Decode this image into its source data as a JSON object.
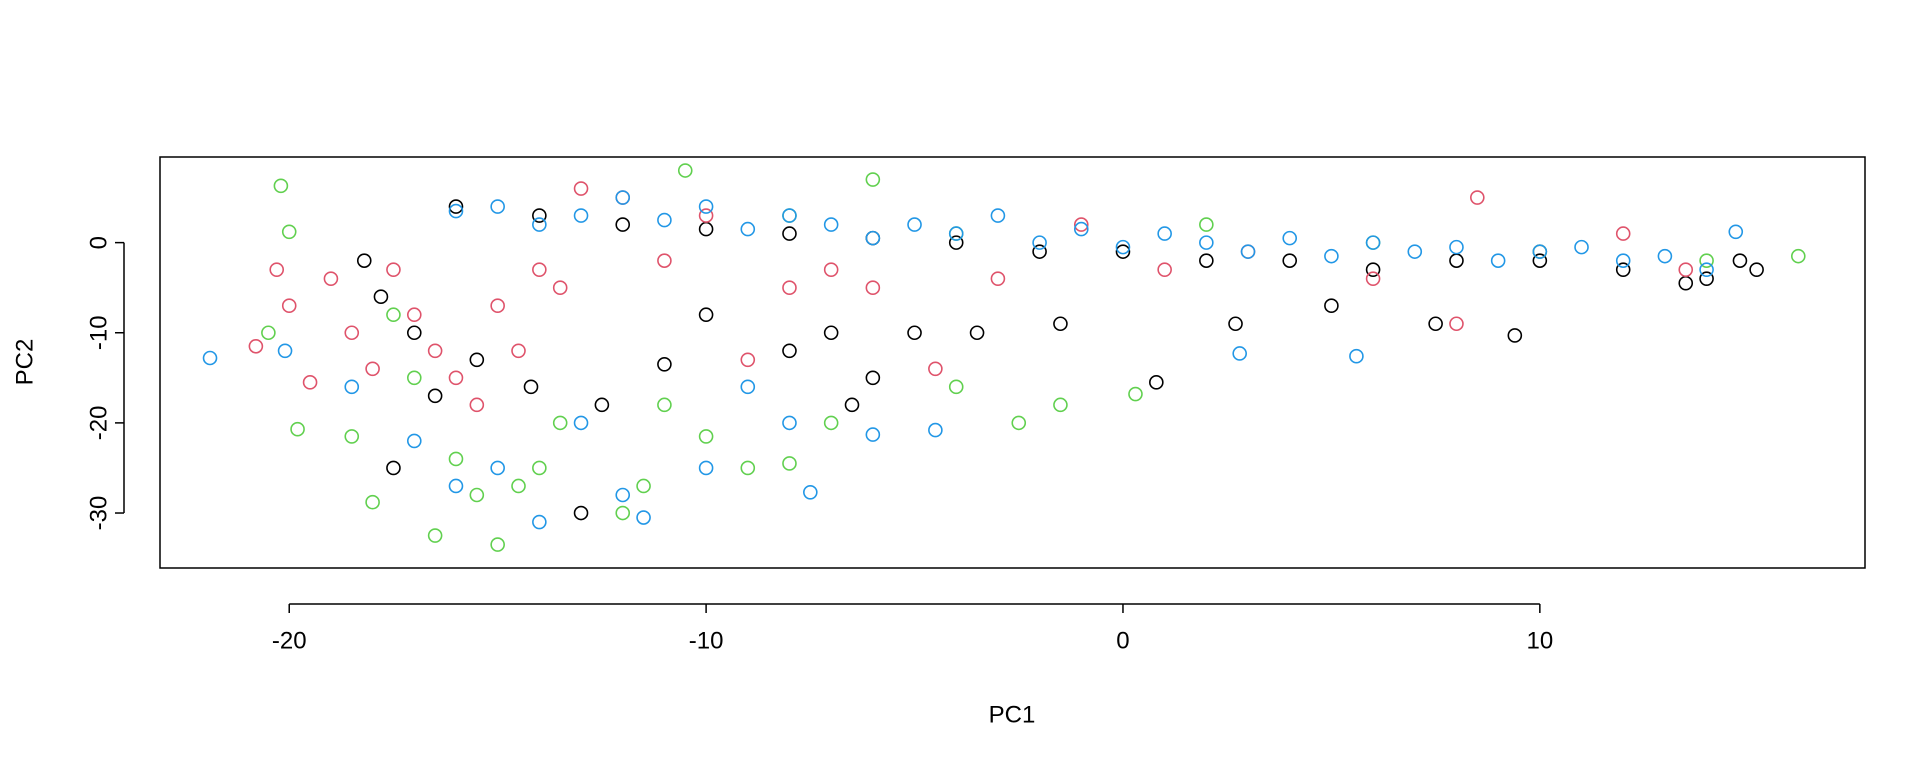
{
  "chart_data": {
    "type": "scatter",
    "x_label": "PC1",
    "y_label": "PC2",
    "xlim": [
      -23.1,
      17.8
    ],
    "ylim": [
      -36.1,
      9.5
    ],
    "xticks": [
      -20,
      -10,
      0,
      10
    ],
    "yticks": [
      -30,
      -20,
      -10,
      0
    ],
    "grid": false,
    "series": [
      {
        "color": "#000000",
        "x": [
          -16,
          -14,
          -12,
          -10,
          -8,
          -6,
          -4,
          -2,
          0,
          2,
          4,
          6,
          8,
          10,
          12,
          14,
          15.2,
          14.8,
          -18.2,
          -17.8,
          -17,
          -16.5,
          -17.5,
          -15.5,
          -14.2,
          -13,
          -12.5,
          -11,
          -10,
          -8,
          -7,
          -6.5,
          -5,
          -3.5,
          -1.5,
          0.8,
          2.7,
          5,
          7.5,
          9.4,
          13.5,
          -6
        ],
        "values": [
          4,
          3,
          2,
          1.5,
          1,
          0.5,
          0,
          -1,
          -1,
          -2,
          -2,
          -3,
          -2,
          -2,
          -3,
          -4,
          -3,
          -2,
          -2,
          -6,
          -10,
          -17,
          -25,
          -13,
          -16,
          -30,
          -18,
          -13.5,
          -8,
          -12,
          -10,
          -18,
          -10,
          -10,
          -9,
          -15.5,
          -9,
          -7,
          -9,
          -10.3,
          -4.5,
          -15
        ]
      },
      {
        "color": "#DF536B",
        "x": [
          -20.8,
          -20.3,
          -20,
          -19.5,
          -19,
          -18.5,
          -18,
          -17.5,
          -17,
          -16.5,
          -16,
          -15.5,
          -15,
          -14.5,
          -14,
          -13.5,
          -13,
          -12,
          -11,
          -10,
          -9,
          -8,
          -6,
          -4.5,
          -3,
          -1,
          1,
          3,
          6,
          8,
          8.5,
          10,
          12,
          13.5,
          -7
        ],
        "values": [
          -11.5,
          -3,
          -7,
          -15.5,
          -4,
          -10,
          -14,
          -3,
          -8,
          -12,
          -15,
          -18,
          -7,
          -12,
          -3,
          -5,
          6,
          5,
          -2,
          3,
          -13,
          -5,
          -5,
          -14,
          -4,
          2,
          -3,
          -1,
          -4,
          -9,
          5,
          -1,
          1,
          -3,
          -3
        ]
      },
      {
        "color": "#61D04F",
        "x": [
          -20.2,
          -20,
          -20.5,
          -19.8,
          -18.5,
          -18,
          -17.5,
          -17,
          -16.5,
          -16,
          -15.5,
          -15,
          -14.5,
          -14,
          -13.5,
          -12,
          -11.5,
          -11,
          -10,
          -9,
          -8,
          -7,
          -6,
          -4,
          -2.5,
          -1.5,
          0.3,
          -10.5,
          -8,
          -4,
          2,
          6,
          10,
          14,
          16.2
        ],
        "values": [
          6.3,
          1.2,
          -10,
          -20.7,
          -21.5,
          -28.8,
          -8,
          -15,
          -32.5,
          -24,
          -28,
          -33.5,
          -27,
          -25,
          -20,
          -30,
          -27,
          -18,
          -21.5,
          -25,
          -24.5,
          -20,
          7,
          -16,
          -20,
          -18,
          -16.8,
          8,
          3,
          1,
          2,
          0,
          -1,
          -2,
          -1.5
        ]
      },
      {
        "color": "#2297E6",
        "x": [
          -16,
          -15,
          -14,
          -13,
          -12,
          -11,
          -10,
          -9,
          -8,
          -7,
          -6,
          -5,
          -4,
          -3,
          -2,
          -1,
          0,
          1,
          2,
          3,
          4,
          5,
          6,
          7,
          8,
          9,
          10,
          11,
          12,
          13,
          14,
          14.7,
          -21.9,
          -20.1,
          -18.5,
          -17,
          -16,
          -15,
          -14,
          -13,
          -12,
          -11.5,
          -10,
          -9,
          -8,
          -7.5,
          -6,
          -4.5,
          2.8,
          5.6
        ],
        "values": [
          3.5,
          4,
          2,
          3,
          5,
          2.5,
          4,
          1.5,
          3,
          2,
          0.5,
          2,
          1,
          3,
          0,
          1.5,
          -0.5,
          1,
          0,
          -1,
          0.5,
          -1.5,
          0,
          -1,
          -0.5,
          -2,
          -1,
          -0.5,
          -2,
          -1.5,
          -3,
          1.2,
          -12.8,
          -12,
          -16,
          -22,
          -27,
          -25,
          -31,
          -20,
          -28,
          -30.5,
          -25,
          -16,
          -20,
          -27.7,
          -21.3,
          -20.8,
          -12.3,
          -12.6
        ]
      }
    ]
  }
}
